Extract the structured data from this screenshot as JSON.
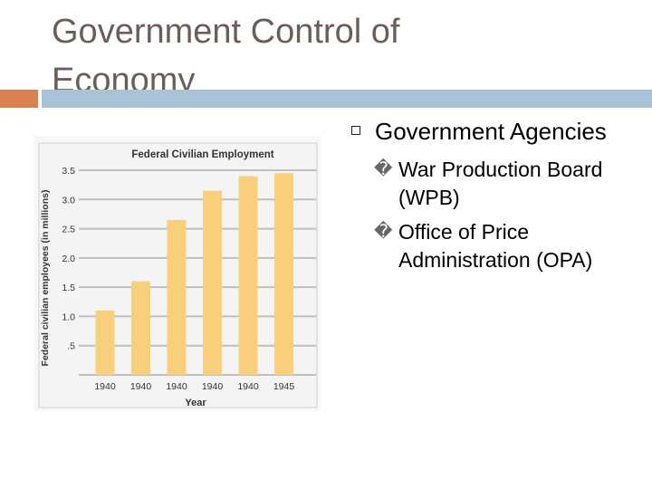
{
  "slide": {
    "title": "Government Control of Economy",
    "accent_color": "#d9824f",
    "rule_color": "#a8c2d6"
  },
  "bullets": {
    "main": "Government Agencies",
    "main_icon": "square-bullet-icon",
    "items": [
      {
        "glyph": "�",
        "text": "War Production Board (WPB)"
      },
      {
        "glyph": "�",
        "text": "Office of Price Administration (OPA)"
      }
    ]
  },
  "chart_data": {
    "type": "bar",
    "title": "Federal Civilian Employment",
    "xlabel": "Year",
    "ylabel": "Federal civilian employees (in millions)",
    "categories": [
      "1940",
      "1940",
      "1940",
      "1940",
      "1940",
      "1945"
    ],
    "values": [
      1.1,
      1.6,
      2.65,
      3.15,
      3.4,
      3.45
    ],
    "ylim": [
      0,
      3.5
    ],
    "y_ticks": [
      0.5,
      1.0,
      1.5,
      2.0,
      2.5,
      3.0,
      3.5
    ],
    "y_tick_labels": [
      ".5",
      "1.0",
      "1.5",
      "2.0",
      "2.5",
      "3.0",
      "3.5"
    ],
    "grid": true,
    "bar_color": "#f8cf7a",
    "grid_color": "#bfbfbf",
    "background_color": "#f7f7f7"
  }
}
